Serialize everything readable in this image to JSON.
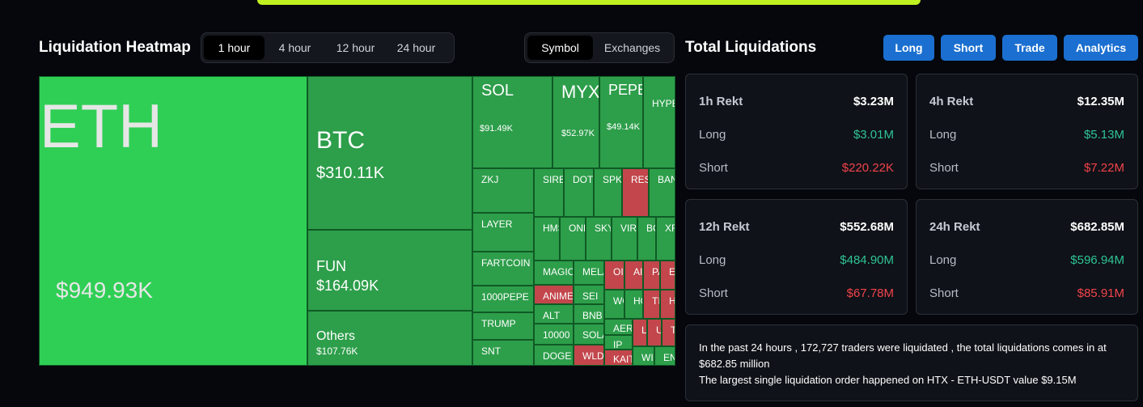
{
  "heatmap": {
    "title": "Liquidation Heatmap",
    "time_tabs": [
      "1 hour",
      "4 hour",
      "12 hour",
      "24 hour"
    ],
    "active_time_tab": "1 hour",
    "view_tabs": [
      "Symbol",
      "Exchanges"
    ],
    "active_view_tab": "Symbol"
  },
  "tiles": [
    {
      "symbol": "ETH",
      "value": "$949.93K",
      "color": "#2fcf55"
    },
    {
      "symbol": "BTC",
      "value": "$310.11K",
      "color": "#2d9e4a"
    },
    {
      "symbol": "FUN",
      "value": "$164.09K",
      "color": "#2d9e4a"
    },
    {
      "symbol": "Others",
      "value": "$107.76K",
      "color": "#2d9e4a"
    },
    {
      "symbol": "SOL",
      "value": "$91.49K",
      "color": "#2d9e4a"
    },
    {
      "symbol": "MYX",
      "value": "$52.97K",
      "color": "#2d9e4a"
    },
    {
      "symbol": "PEPE",
      "value": "$49.14K",
      "color": "#2d9e4a"
    },
    {
      "symbol": "HYPE",
      "color": "#2d9e4a"
    },
    {
      "symbol": "ZKJ",
      "color": "#2d9e4a"
    },
    {
      "symbol": "LAYER",
      "color": "#2d9e4a"
    },
    {
      "symbol": "FARTCOIN",
      "color": "#2d9e4a"
    },
    {
      "symbol": "1000PEPE",
      "color": "#2d9e4a"
    },
    {
      "symbol": "TRUMP",
      "color": "#2d9e4a"
    },
    {
      "symbol": "SNT",
      "color": "#2d9e4a"
    },
    {
      "symbol": "SIRE",
      "color": "#2d9e4a"
    },
    {
      "symbol": "DOT",
      "color": "#2d9e4a"
    },
    {
      "symbol": "SPK",
      "color": "#2d9e4a"
    },
    {
      "symbol": "RES",
      "color": "#c2464b"
    },
    {
      "symbol": "BAN",
      "color": "#2d9e4a"
    },
    {
      "symbol": "HMS",
      "color": "#2d9e4a"
    },
    {
      "symbol": "OND",
      "color": "#2d9e4a"
    },
    {
      "symbol": "SKY",
      "color": "#2d9e4a"
    },
    {
      "symbol": "VIR",
      "color": "#2d9e4a"
    },
    {
      "symbol": "BC",
      "color": "#2d9e4a"
    },
    {
      "symbol": "XR",
      "color": "#2d9e4a"
    },
    {
      "symbol": "MAGIC",
      "color": "#2d9e4a"
    },
    {
      "symbol": "MELA",
      "color": "#2d9e4a"
    },
    {
      "symbol": "OI",
      "color": "#c2464b"
    },
    {
      "symbol": "AI",
      "color": "#c2464b"
    },
    {
      "symbol": "PA",
      "color": "#c2464b"
    },
    {
      "symbol": "EI",
      "color": "#c2464b"
    },
    {
      "symbol": "ANIME",
      "color": "#c2464b"
    },
    {
      "symbol": "SEI",
      "color": "#2d9e4a"
    },
    {
      "symbol": "WC",
      "color": "#2d9e4a"
    },
    {
      "symbol": "HC",
      "color": "#2d9e4a"
    },
    {
      "symbol": "TI",
      "color": "#c2464b"
    },
    {
      "symbol": "HE",
      "color": "#c2464b"
    },
    {
      "symbol": "ALT",
      "color": "#2d9e4a"
    },
    {
      "symbol": "BNB",
      "color": "#2d9e4a"
    },
    {
      "symbol": "AER",
      "color": "#2d9e4a"
    },
    {
      "symbol": "L",
      "color": "#c2464b"
    },
    {
      "symbol": "U",
      "color": "#c2464b"
    },
    {
      "symbol": "T",
      "color": "#c2464b"
    },
    {
      "symbol": "10000",
      "color": "#2d9e4a"
    },
    {
      "symbol": "SOLA",
      "color": "#2d9e4a"
    },
    {
      "symbol": "IP",
      "color": "#2d9e4a"
    },
    {
      "symbol": "DOGE",
      "color": "#2d9e4a"
    },
    {
      "symbol": "WLD",
      "color": "#c2464b"
    },
    {
      "symbol": "KAIT",
      "color": "#c2464b"
    },
    {
      "symbol": "WI",
      "color": "#2d9e4a"
    },
    {
      "symbol": "EN",
      "color": "#2d9e4a"
    }
  ],
  "totals": {
    "title": "Total Liquidations",
    "buttons": [
      "Long",
      "Short",
      "Trade",
      "Analytics"
    ],
    "cards": [
      {
        "period": "1h Rekt",
        "total": "$3.23M",
        "long_label": "Long",
        "long": "$3.01M",
        "short_label": "Short",
        "short": "$220.22K"
      },
      {
        "period": "4h Rekt",
        "total": "$12.35M",
        "long_label": "Long",
        "long": "$5.13M",
        "short_label": "Short",
        "short": "$7.22M"
      },
      {
        "period": "12h Rekt",
        "total": "$552.68M",
        "long_label": "Long",
        "long": "$484.90M",
        "short_label": "Short",
        "short": "$67.78M"
      },
      {
        "period": "24h Rekt",
        "total": "$682.85M",
        "long_label": "Long",
        "long": "$596.94M",
        "short_label": "Short",
        "short": "$85.91M"
      }
    ],
    "summary_line1": "In the past 24 hours , 172,727 traders were liquidated , the total liquidations comes in at $682.85 million",
    "summary_line2": "The largest single liquidation order happened on HTX - ETH-USDT value $9.15M"
  },
  "colors": {
    "long": "#2fc497",
    "short": "#f2434b",
    "accent": "#1b6fd0",
    "banner": "#bff020"
  }
}
